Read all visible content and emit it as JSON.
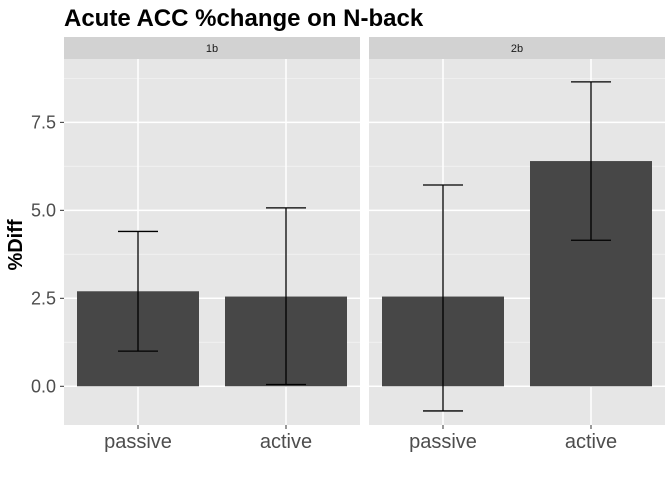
{
  "chart_data": {
    "type": "bar",
    "title": "Acute ACC %change on N-back",
    "ylabel": "%Diff",
    "xlabel": "",
    "ylim": [
      -1.1,
      9.3
    ],
    "yticks": [
      0,
      2.5,
      5,
      7.5
    ],
    "ytick_labels": [
      "0.0",
      "2.5",
      "5.0",
      "7.5"
    ],
    "grid": true,
    "bar_color": "#474747",
    "panel_bg": "#e6e6e6",
    "strip_bg": "#d2d2d2",
    "facets": [
      {
        "label": "1b",
        "categories": [
          "passive",
          "active"
        ],
        "values": [
          2.7,
          2.55
        ],
        "error_low": [
          1.0,
          0.05
        ],
        "error_high": [
          4.4,
          5.07
        ]
      },
      {
        "label": "2b",
        "categories": [
          "passive",
          "active"
        ],
        "values": [
          2.55,
          6.4
        ],
        "error_low": [
          -0.7,
          4.15
        ],
        "error_high": [
          5.72,
          8.65
        ]
      }
    ]
  }
}
